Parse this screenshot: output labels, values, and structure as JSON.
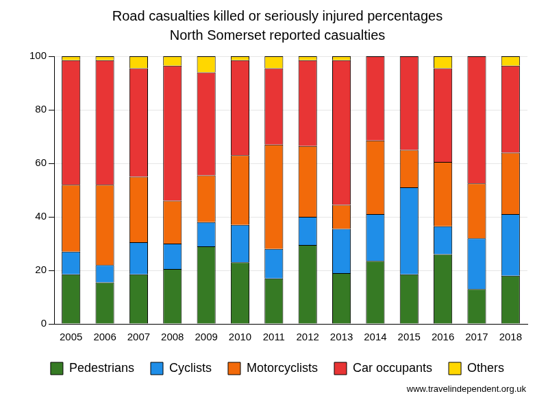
{
  "chart_data": {
    "type": "bar",
    "title": "Road casualties killed or seriously injured percentages",
    "subtitle": "North Somerset reported casualties",
    "annotations": [
      "www.travelindependent.org.uk"
    ],
    "categories": [
      "2005",
      "2006",
      "2007",
      "2008",
      "2009",
      "2010",
      "2011",
      "2012",
      "2013",
      "2014",
      "2015",
      "2016",
      "2017",
      "2018"
    ],
    "series": [
      {
        "name": "Pedestrians",
        "color": "#367a24",
        "values": [
          18.5,
          15.5,
          18.5,
          20.5,
          29,
          23,
          17,
          29.5,
          19,
          23.5,
          18.5,
          26,
          13,
          18
        ]
      },
      {
        "name": "Cyclists",
        "color": "#1f8ee8",
        "values": [
          8.5,
          6.5,
          12,
          9.5,
          9,
          14,
          11,
          10.5,
          16.5,
          17.5,
          32.5,
          10.5,
          19,
          23
        ]
      },
      {
        "name": "Motorcyclists",
        "color": "#f26a0a",
        "values": [
          25,
          30,
          24.5,
          16,
          17.5,
          26,
          39,
          26.5,
          9,
          27.5,
          14,
          24,
          20.5,
          23
        ]
      },
      {
        "name": "Car occupants",
        "color": "#e83535",
        "values": [
          46.5,
          46.5,
          40.5,
          50.5,
          38.5,
          35.5,
          28.5,
          32,
          54,
          31.5,
          35,
          35,
          47.5,
          32.5
        ]
      },
      {
        "name": "Others",
        "color": "#ffd700",
        "values": [
          1.5,
          1.5,
          4.5,
          3.5,
          6,
          1.5,
          4.5,
          1.5,
          1.5,
          0,
          0,
          4.5,
          0,
          3.5
        ]
      }
    ],
    "stacked": true,
    "ylim": [
      0,
      100
    ],
    "yticks": [
      0,
      20,
      40,
      60,
      80,
      100
    ],
    "grid": true,
    "legend": "bottom"
  }
}
